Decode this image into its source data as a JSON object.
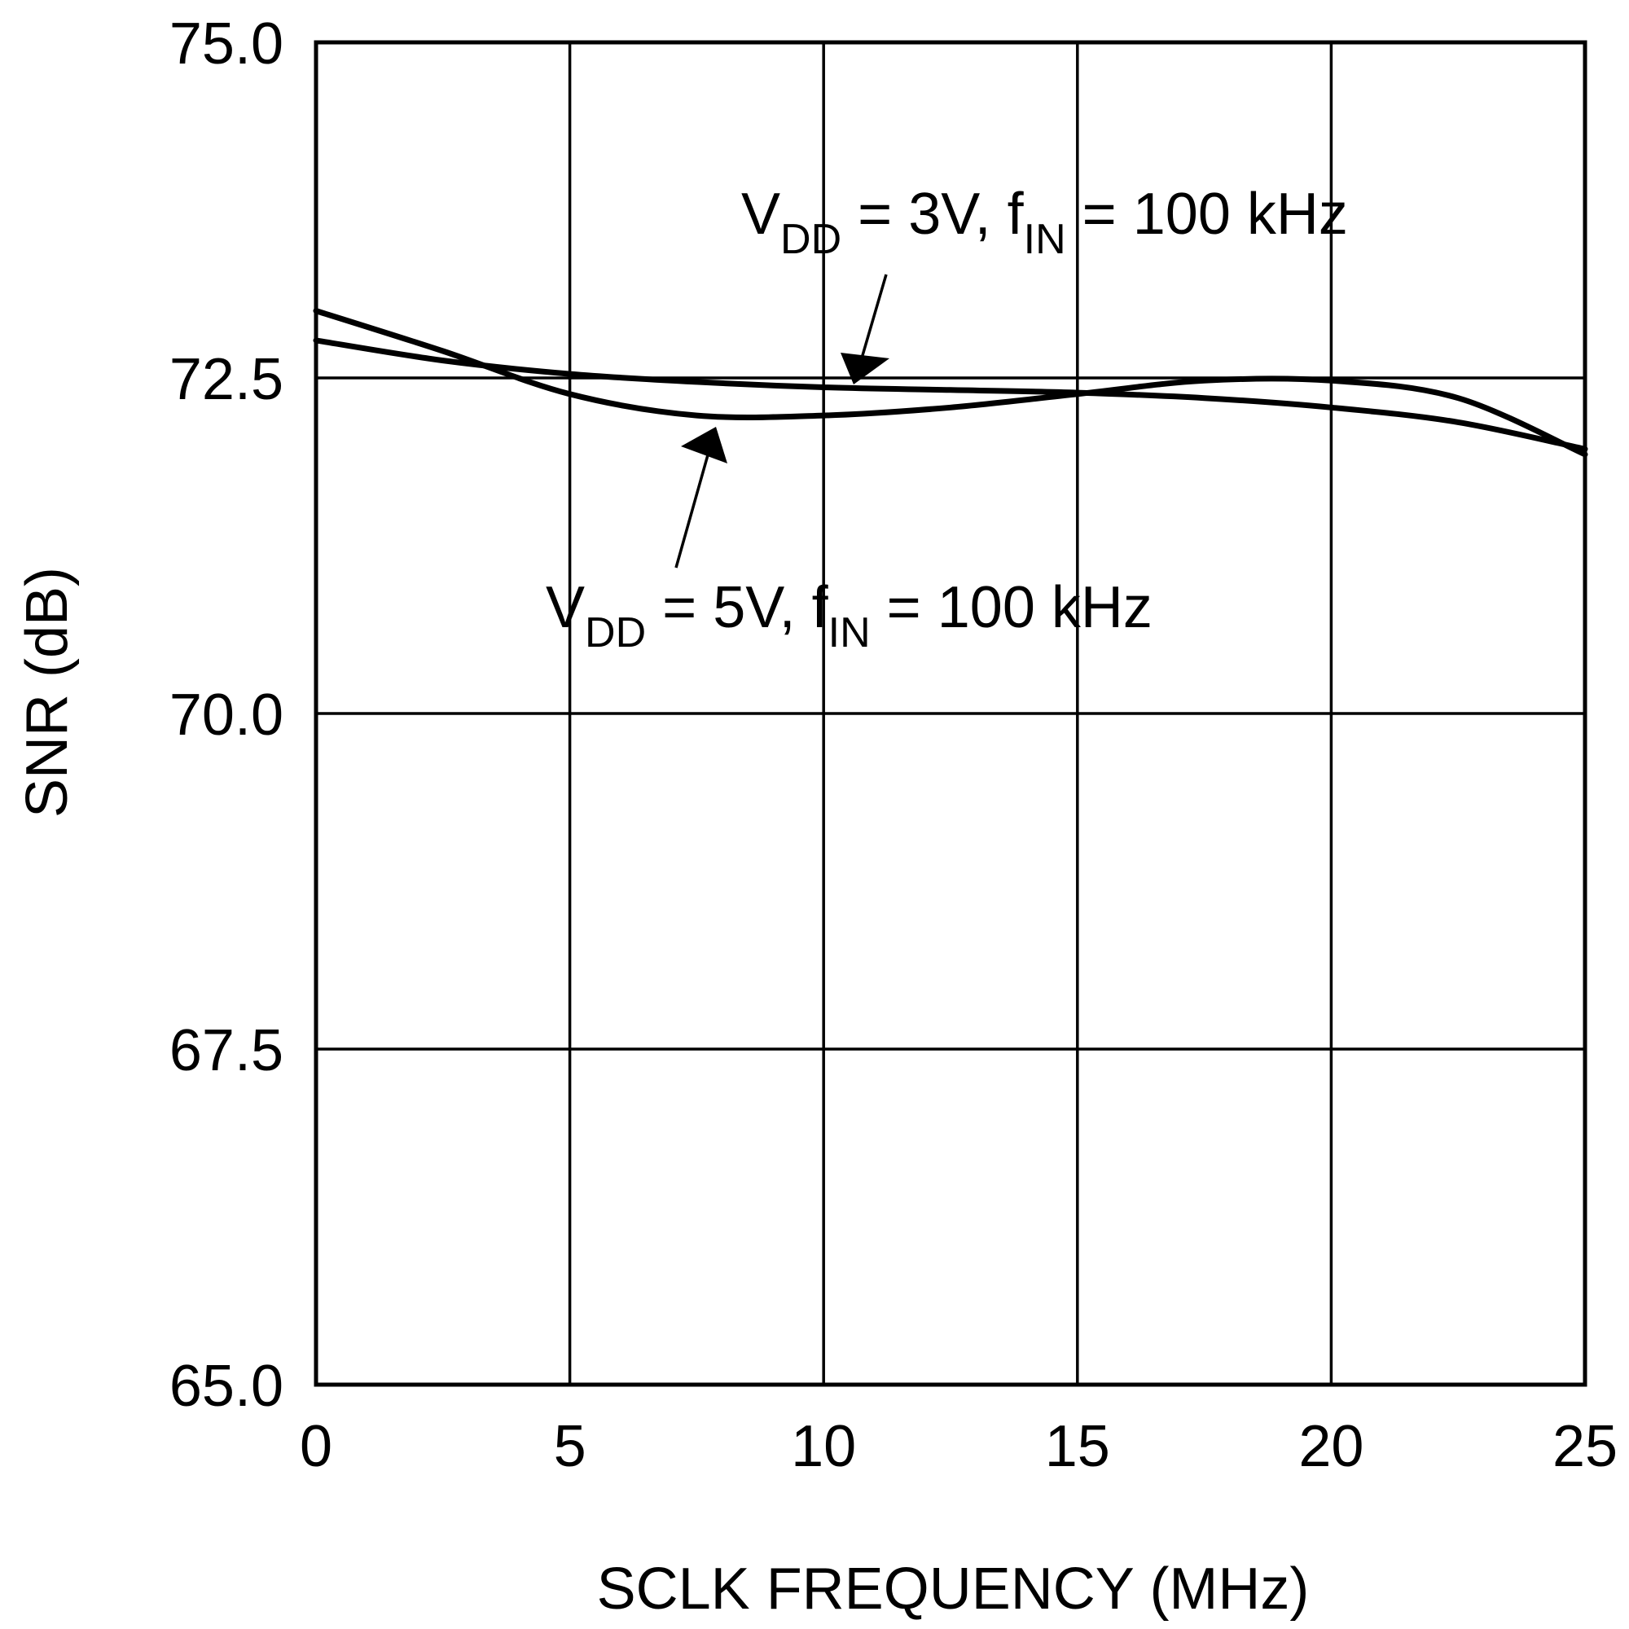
{
  "chart_data": {
    "type": "line",
    "title": "",
    "xlabel": "SCLK FREQUENCY (MHz)",
    "ylabel": "SNR (dB)",
    "xlim": [
      0,
      25
    ],
    "ylim": [
      65.0,
      75.0
    ],
    "grid": true,
    "x_ticks": [
      "0",
      "5",
      "10",
      "15",
      "20",
      "25"
    ],
    "y_ticks": [
      "65.0",
      "67.5",
      "70.0",
      "72.5",
      "75.0"
    ],
    "series": [
      {
        "name": "VDD = 3V, fIN = 100 kHz",
        "label_main": "V",
        "label_sub": "DD",
        "label_mid": " = 3V, f",
        "label_sub2": "IN",
        "label_end": " = 100 kHz",
        "x": [
          0,
          2.5,
          5,
          7.5,
          10,
          12.5,
          15,
          17.5,
          20,
          22.5,
          25
        ],
        "y": [
          72.78,
          72.63,
          72.53,
          72.47,
          72.43,
          72.41,
          72.39,
          72.35,
          72.28,
          72.17,
          71.97
        ]
      },
      {
        "name": "VDD = 5V, fIN = 100 kHz",
        "label_main": "V",
        "label_sub": "DD",
        "label_mid": " = 5V, f",
        "label_sub2": "IN",
        "label_end": " = 100 kHz",
        "x": [
          0,
          2.5,
          5,
          7.5,
          10,
          12.5,
          15,
          17.5,
          20,
          22.5,
          25
        ],
        "y": [
          73.0,
          72.7,
          72.38,
          72.22,
          72.22,
          72.28,
          72.38,
          72.48,
          72.48,
          72.35,
          71.93
        ]
      }
    ]
  }
}
